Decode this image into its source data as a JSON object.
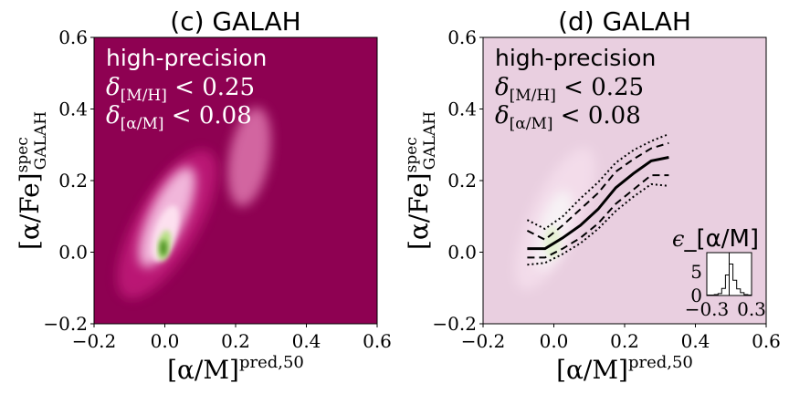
{
  "chart_data": [
    {
      "type": "heatmap",
      "title": "(c) GALAH",
      "xlabel": "[α/M]",
      "xlabel_sup": "pred,50",
      "ylabel": "[α/Fe]",
      "ylabel_sup": "spec",
      "ylabel_sub": "GALAH",
      "xlim": [
        -0.2,
        0.6
      ],
      "ylim": [
        -0.2,
        0.6
      ],
      "xticks": [
        "−0.2",
        "0.0",
        "0.2",
        "0.4",
        "0.6"
      ],
      "yticks": [
        "−0.2",
        "0.0",
        "0.2",
        "0.4",
        "0.6"
      ],
      "grid": false,
      "colormap": "PiYG",
      "background_color": "#8e0152",
      "annotation": {
        "line1": "high-precision",
        "line2_sym": "δ",
        "line2_sub": "[M/H]",
        "line2_rel": " < 0.25",
        "line3_sym": "δ",
        "line3_sub": "[α/M]",
        "line3_rel": " < 0.08"
      }
    },
    {
      "type": "heatmap",
      "title": "(d) GALAH",
      "xlabel": "[α/M]",
      "xlabel_sup": "pred,50",
      "ylabel": "[α/Fe]",
      "ylabel_sup": "spec",
      "ylabel_sub": "GALAH",
      "xlim": [
        -0.2,
        0.6
      ],
      "ylim": [
        -0.2,
        0.6
      ],
      "xticks": [
        "−0.2",
        "0.0",
        "0.2",
        "0.4",
        "0.6"
      ],
      "yticks": [
        "−0.2",
        "0.0",
        "0.2",
        "0.4",
        "0.6"
      ],
      "grid": false,
      "colormap": "PiYG",
      "background_color": "#e9cfe0",
      "annotation": {
        "line1": "high-precision",
        "line2_sym": "δ",
        "line2_sub": "[M/H]",
        "line2_rel": " < 0.25",
        "line3_sym": "δ",
        "line3_sub": "[α/M]",
        "line3_rel": " < 0.08"
      },
      "running_stats": {
        "x": [
          -0.075,
          -0.025,
          0.025,
          0.075,
          0.125,
          0.175,
          0.225,
          0.275,
          0.325
        ],
        "median": [
          0.01,
          0.01,
          0.04,
          0.075,
          0.12,
          0.18,
          0.22,
          0.255,
          0.265
        ],
        "p16": [
          -0.015,
          -0.015,
          0.01,
          0.04,
          0.08,
          0.135,
          0.175,
          0.215,
          0.215
        ],
        "p84": [
          0.06,
          0.035,
          0.075,
          0.12,
          0.165,
          0.225,
          0.26,
          0.29,
          0.305
        ],
        "p02": [
          -0.035,
          -0.03,
          -0.005,
          0.025,
          0.065,
          0.115,
          0.155,
          0.19,
          0.185
        ],
        "p98": [
          0.09,
          0.065,
          0.1,
          0.15,
          0.195,
          0.25,
          0.285,
          0.31,
          0.33
        ]
      },
      "inset": {
        "type": "histogram",
        "title_sym": "ϵ",
        "title_rest": "_[α/M]",
        "xlim": [
          -0.3,
          0.3
        ],
        "ylim": [
          0,
          9
        ],
        "xticks": [
          "−0.3",
          "0.3"
        ],
        "yticks": [
          "0",
          "5"
        ],
        "bin_edges": [
          -0.3,
          -0.25,
          -0.2,
          -0.15,
          -0.1,
          -0.05,
          0.0,
          0.05,
          0.1,
          0.15,
          0.2,
          0.25,
          0.3
        ],
        "counts": [
          0.1,
          0.1,
          0.2,
          0.4,
          1.5,
          4.3,
          6.6,
          3.2,
          1.4,
          0.6,
          0.2,
          0.1
        ],
        "vline_x": 0.0
      }
    }
  ]
}
